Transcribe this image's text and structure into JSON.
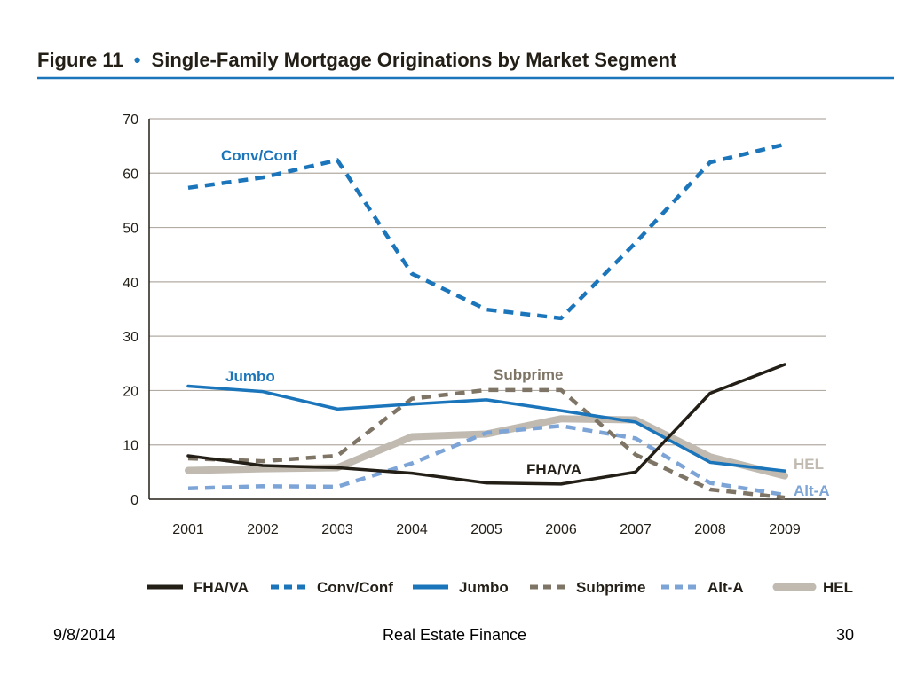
{
  "figure": {
    "number": "Figure 11",
    "bullet": "•",
    "title": "Single-Family Mortgage Originations by Market Segment"
  },
  "footer": {
    "date": "9/8/2014",
    "center": "Real Estate Finance",
    "page": "30"
  },
  "chart_data": {
    "type": "line",
    "title": "Single-Family Mortgage Originations by Market Segment",
    "xlabel": "",
    "ylabel": "",
    "ylim": [
      0,
      70
    ],
    "yticks": [
      0,
      10,
      20,
      30,
      40,
      50,
      60,
      70
    ],
    "categories": [
      "2001",
      "2002",
      "2003",
      "2004",
      "2005",
      "2006",
      "2007",
      "2008",
      "2009"
    ],
    "grid": true,
    "legend": "bottom",
    "series": [
      {
        "name": "FHA/VA",
        "values": [
          8,
          6.2,
          5.8,
          4.8,
          3,
          2.8,
          5,
          19.5,
          24.8
        ],
        "color": "#231f17",
        "style": "solid"
      },
      {
        "name": "Conv/Conf",
        "values": [
          57.3,
          59.2,
          62.4,
          41.5,
          34.9,
          33.3,
          47.2,
          62,
          65.3
        ],
        "color": "#1a75bb",
        "style": "dashed"
      },
      {
        "name": "Jumbo",
        "values": [
          20.8,
          19.8,
          16.6,
          17.5,
          18.3,
          16.3,
          14.2,
          6.8,
          5.2
        ],
        "color": "#1a75bb",
        "style": "solid"
      },
      {
        "name": "Subprime",
        "values": [
          7.5,
          7,
          8,
          18.5,
          20.1,
          20.1,
          8.2,
          1.8,
          0.3
        ],
        "color": "#7f7566",
        "style": "dashed"
      },
      {
        "name": "Alt-A",
        "values": [
          2,
          2.4,
          2.3,
          6.6,
          12.2,
          13.5,
          11.2,
          3,
          0.8
        ],
        "color": "#7da4d6",
        "style": "dashed"
      },
      {
        "name": "HEL",
        "values": [
          5.3,
          5.6,
          5.8,
          11.5,
          12,
          14.8,
          14.6,
          7.8,
          4.3
        ],
        "color": "#c0bab1",
        "style": "thick"
      }
    ],
    "annotations": [
      {
        "text": "Conv/Conf",
        "series": "Conv/Conf"
      },
      {
        "text": "Jumbo",
        "series": "Jumbo"
      },
      {
        "text": "Subprime",
        "series": "Subprime"
      },
      {
        "text": "FHA/VA",
        "series": "FHA/VA"
      },
      {
        "text": "HEL",
        "series": "HEL"
      },
      {
        "text": "Alt-A",
        "series": "Alt-A"
      }
    ]
  }
}
